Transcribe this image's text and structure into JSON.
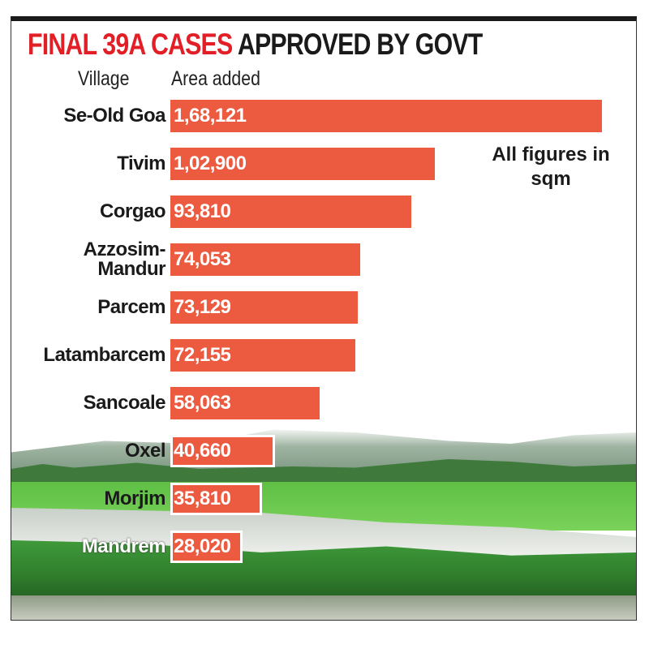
{
  "chart_data": {
    "type": "bar",
    "orientation": "horizontal",
    "title_red": "FINAL 39A CASES",
    "title_black": "APPROVED BY GOVT",
    "category_header": "Village",
    "value_header": "Area added",
    "note": "All figures in sqm",
    "categories": [
      "Se-Old Goa",
      "Tivim",
      "Corgao",
      "Azzosim-Mandur",
      "Parcem",
      "Latambarcem",
      "Sancoale",
      "Oxel",
      "Morjim",
      "Mandrem"
    ],
    "values": [
      168121,
      102900,
      93810,
      74053,
      73129,
      72155,
      58063,
      40660,
      35810,
      28020
    ],
    "value_labels": [
      "1,68,121",
      "1,02,900",
      "93,810",
      "74,053",
      "73,129",
      "72,155",
      "58,063",
      "40,660",
      "35,810",
      "28,020"
    ],
    "bar_color": "#ec5a3f",
    "title_color": "#e21f26",
    "grid": false
  }
}
